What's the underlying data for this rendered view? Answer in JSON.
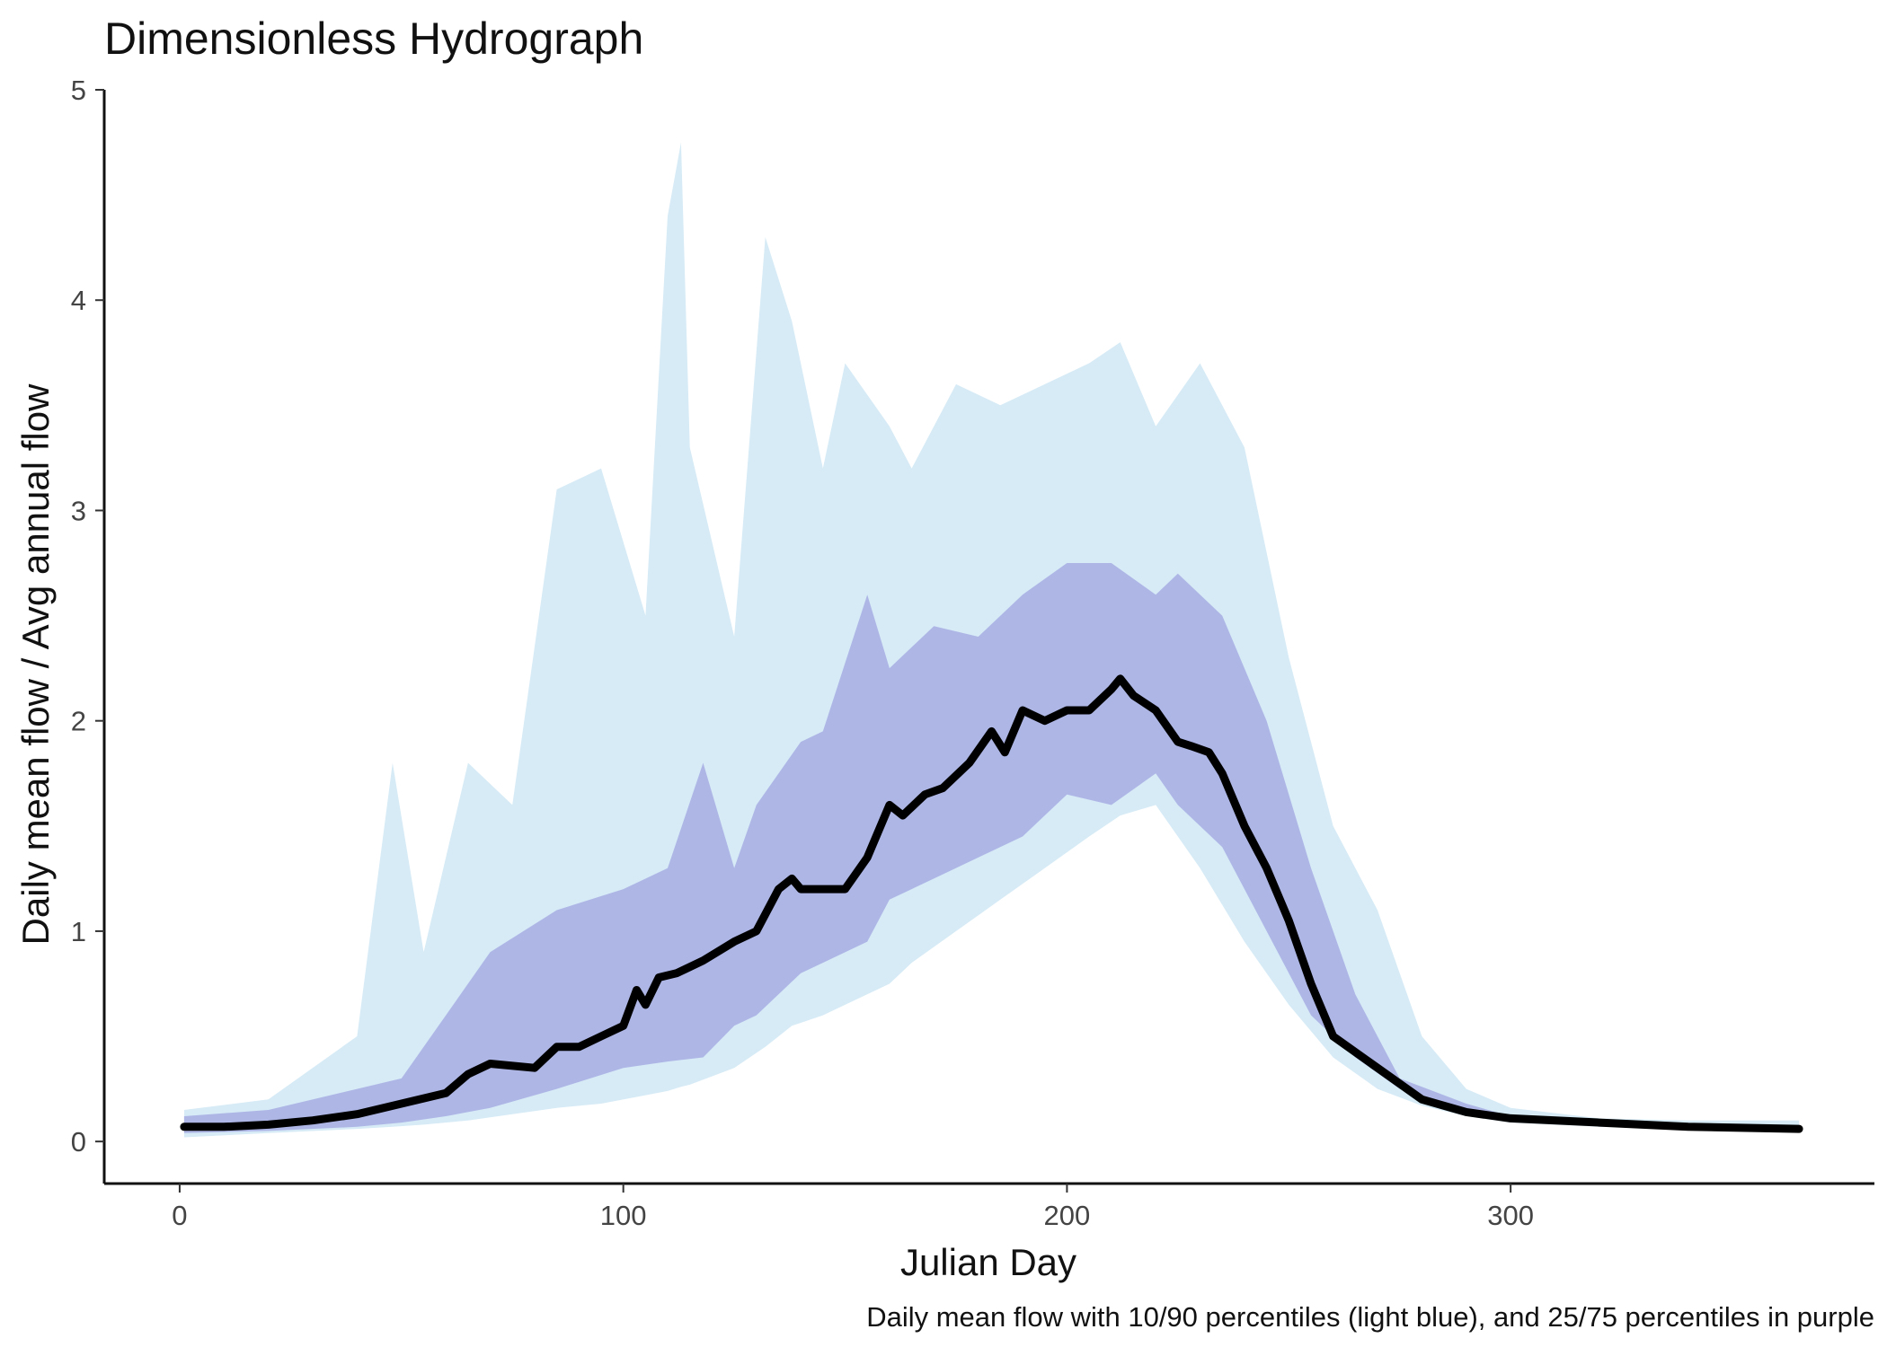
{
  "chart_data": {
    "type": "area",
    "title": "Dimensionless Hydrograph",
    "xlabel": "Julian Day",
    "ylabel": "Daily mean flow / Avg annual flow",
    "caption": "Daily mean flow with 10/90 percentiles (light blue), and 25/75 percentiles in purple",
    "xlim": [
      -17,
      382
    ],
    "ylim": [
      -0.2,
      5
    ],
    "x_ticks": [
      0,
      100,
      200,
      300
    ],
    "y_ticks": [
      0,
      1,
      2,
      3,
      4,
      5
    ],
    "grid": false,
    "legend": "none",
    "colors": {
      "band_10_90": "#d6ebf6",
      "band_25_75": "#aeb6e6",
      "mean_line": "#000000",
      "axis": "#111111"
    },
    "series": [
      {
        "kind": "band",
        "x": [
          1,
          20,
          40,
          48,
          55,
          65,
          75,
          85,
          95,
          105,
          110,
          113,
          115,
          125,
          132,
          138,
          145,
          150,
          160,
          165,
          175,
          185,
          195,
          205,
          212,
          220,
          230,
          240,
          250,
          260,
          270,
          280,
          290,
          300,
          320,
          340,
          365
        ],
        "lower": [
          0.02,
          0.04,
          0.06,
          0.07,
          0.08,
          0.1,
          0.13,
          0.16,
          0.18,
          0.22,
          0.24,
          0.26,
          0.27,
          0.35,
          0.45,
          0.55,
          0.6,
          0.65,
          0.75,
          0.85,
          1.0,
          1.15,
          1.3,
          1.45,
          1.55,
          1.6,
          1.3,
          0.95,
          0.65,
          0.4,
          0.25,
          0.17,
          0.12,
          0.09,
          0.07,
          0.06,
          0.06
        ],
        "upper": [
          0.15,
          0.2,
          0.5,
          1.8,
          0.9,
          1.8,
          1.6,
          3.1,
          3.2,
          2.5,
          4.4,
          4.75,
          3.3,
          2.4,
          4.3,
          3.9,
          3.2,
          3.7,
          3.4,
          3.2,
          3.6,
          3.5,
          3.6,
          3.7,
          3.8,
          3.4,
          3.7,
          3.3,
          2.3,
          1.5,
          1.1,
          0.5,
          0.25,
          0.16,
          0.11,
          0.1,
          0.1
        ]
      },
      {
        "kind": "band",
        "x": [
          1,
          20,
          40,
          50,
          60,
          70,
          85,
          100,
          110,
          118,
          125,
          130,
          140,
          145,
          155,
          160,
          170,
          180,
          190,
          200,
          210,
          220,
          225,
          235,
          245,
          255,
          265,
          275,
          290,
          300,
          320,
          340,
          365
        ],
        "lower": [
          0.04,
          0.05,
          0.07,
          0.09,
          0.12,
          0.16,
          0.25,
          0.35,
          0.38,
          0.4,
          0.55,
          0.6,
          0.8,
          0.85,
          0.95,
          1.15,
          1.25,
          1.35,
          1.45,
          1.65,
          1.6,
          1.75,
          1.6,
          1.4,
          1.0,
          0.6,
          0.4,
          0.25,
          0.15,
          0.1,
          0.08,
          0.07,
          0.06
        ],
        "upper": [
          0.12,
          0.15,
          0.25,
          0.3,
          0.6,
          0.9,
          1.1,
          1.2,
          1.3,
          1.8,
          1.3,
          1.6,
          1.9,
          1.95,
          2.6,
          2.25,
          2.45,
          2.4,
          2.6,
          2.75,
          2.75,
          2.6,
          2.7,
          2.5,
          2.0,
          1.3,
          0.7,
          0.3,
          0.18,
          0.12,
          0.09,
          0.08,
          0.07
        ]
      },
      {
        "kind": "line",
        "x": [
          1,
          10,
          20,
          30,
          40,
          50,
          60,
          65,
          70,
          80,
          85,
          90,
          95,
          100,
          103,
          105,
          108,
          112,
          118,
          125,
          130,
          135,
          138,
          140,
          145,
          150,
          155,
          160,
          163,
          168,
          172,
          178,
          183,
          186,
          190,
          195,
          200,
          205,
          210,
          212,
          215,
          220,
          225,
          228,
          232,
          235,
          240,
          245,
          250,
          255,
          260,
          270,
          280,
          290,
          300,
          320,
          340,
          365
        ],
        "y": [
          0.07,
          0.07,
          0.08,
          0.1,
          0.13,
          0.18,
          0.23,
          0.32,
          0.37,
          0.35,
          0.45,
          0.45,
          0.5,
          0.55,
          0.72,
          0.65,
          0.78,
          0.8,
          0.86,
          0.95,
          1.0,
          1.2,
          1.25,
          1.2,
          1.2,
          1.2,
          1.35,
          1.6,
          1.55,
          1.65,
          1.68,
          1.8,
          1.95,
          1.85,
          2.05,
          2.0,
          2.05,
          2.05,
          2.15,
          2.2,
          2.12,
          2.05,
          1.9,
          1.88,
          1.85,
          1.75,
          1.5,
          1.3,
          1.05,
          0.75,
          0.5,
          0.35,
          0.2,
          0.14,
          0.11,
          0.09,
          0.07,
          0.06
        ]
      }
    ]
  }
}
